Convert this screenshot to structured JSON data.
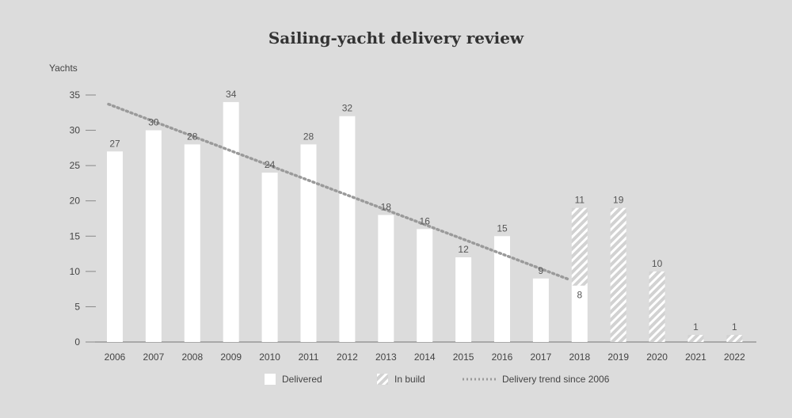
{
  "chart_data": {
    "type": "bar",
    "title": "Sailing-yacht delivery review",
    "ylabel": "Yachts",
    "xlabel": "",
    "ylim": [
      0,
      35
    ],
    "yticks": [
      0,
      5,
      10,
      15,
      20,
      25,
      30,
      35
    ],
    "grid": false,
    "legend_position": "bottom",
    "categories": [
      "2006",
      "2007",
      "2008",
      "2009",
      "2010",
      "2011",
      "2012",
      "2013",
      "2014",
      "2015",
      "2016",
      "2017",
      "2018",
      "2019",
      "2020",
      "2021",
      "2022"
    ],
    "series": [
      {
        "name": "Delivered",
        "values": [
          27,
          30,
          28,
          34,
          24,
          28,
          32,
          18,
          16,
          12,
          15,
          9,
          8,
          0,
          0,
          0,
          0
        ]
      },
      {
        "name": "In build",
        "values": [
          0,
          0,
          0,
          0,
          0,
          0,
          0,
          0,
          0,
          0,
          0,
          0,
          11,
          19,
          10,
          1,
          1
        ]
      },
      {
        "name": "Delivery trend since 2006",
        "type": "line",
        "start": [
          "2006",
          33.7
        ],
        "end": [
          "2018",
          8.8
        ]
      }
    ],
    "colors": {
      "delivered": "#ffffff",
      "in_build_stripe": "#ffffff",
      "trend": "#9a9a9a",
      "axis": "#888888"
    }
  },
  "legend": {
    "delivered": "Delivered",
    "in_build": "In build",
    "trend": "Delivery trend since 2006"
  }
}
